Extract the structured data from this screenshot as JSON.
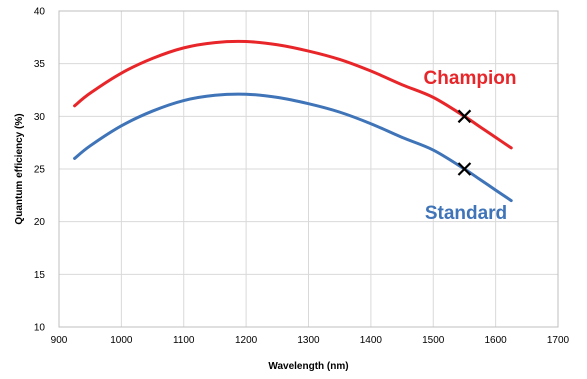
{
  "chart_data": {
    "type": "line",
    "title": "",
    "xlabel": "Wavelength (nm)",
    "ylabel": "Quantum efficiency (%)",
    "xlim": [
      900,
      1700
    ],
    "ylim": [
      10,
      40
    ],
    "xticks": [
      900,
      1000,
      1100,
      1200,
      1300,
      1400,
      1500,
      1600,
      1700
    ],
    "yticks": [
      10,
      15,
      20,
      25,
      30,
      35,
      40
    ],
    "grid": true,
    "legend": "none",
    "series": [
      {
        "name": "Champion",
        "color": "#e8262a",
        "x": [
          925,
          950,
          1000,
          1050,
          1100,
          1150,
          1200,
          1250,
          1300,
          1350,
          1400,
          1450,
          1500,
          1550,
          1575,
          1600,
          1625
        ],
        "y": [
          31.0,
          32.2,
          34.1,
          35.5,
          36.5,
          37.0,
          37.1,
          36.8,
          36.2,
          35.4,
          34.3,
          33.0,
          31.8,
          30.0,
          29.0,
          28.0,
          27.0
        ]
      },
      {
        "name": "Standard",
        "color": "#3f74b8",
        "x": [
          925,
          950,
          1000,
          1050,
          1100,
          1150,
          1200,
          1250,
          1300,
          1350,
          1400,
          1450,
          1500,
          1550,
          1575,
          1600,
          1625
        ],
        "y": [
          26.0,
          27.2,
          29.1,
          30.5,
          31.5,
          32.0,
          32.1,
          31.8,
          31.2,
          30.4,
          29.3,
          28.0,
          26.8,
          25.0,
          24.0,
          23.0,
          22.0
        ]
      }
    ],
    "markers": [
      {
        "x": 1550,
        "y": 30.0,
        "symbol": "x"
      },
      {
        "x": 1550,
        "y": 25.0,
        "symbol": "x"
      }
    ]
  }
}
